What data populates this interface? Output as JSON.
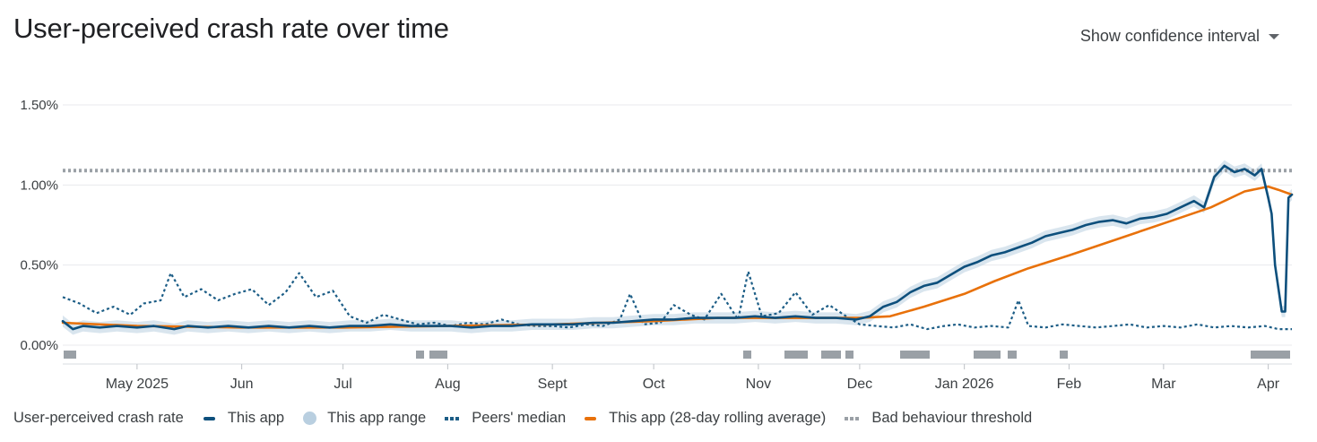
{
  "header": {
    "title": "User-perceived crash rate over time",
    "ci_toggle_label": "Show confidence interval",
    "ci_toggle_icon": "caret-down-icon"
  },
  "legend": {
    "metric_label": "User-perceived crash rate",
    "items": [
      {
        "label": "This app",
        "color": "#174ea6",
        "style": "line"
      },
      {
        "label": "This app range",
        "color": "#b9cfe0",
        "style": "dot"
      },
      {
        "label": "Peers' median",
        "color": "#1c5d86",
        "style": "dotted"
      },
      {
        "label": "This app (28-day rolling average)",
        "color": "#e8710a",
        "style": "line"
      },
      {
        "label": "Bad behaviour threshold",
        "color": "#9aa0a6",
        "style": "dotted"
      }
    ]
  },
  "chart_data": {
    "type": "line",
    "title": "User-perceived crash rate over time",
    "x_range": [
      "2025-04-09",
      "2026-04-08"
    ],
    "ylim": [
      0,
      1.5
    ],
    "y_unit": "%",
    "yticks": [
      {
        "value": 0,
        "label": "0.00%"
      },
      {
        "value": 0.5,
        "label": "0.50%"
      },
      {
        "value": 1.0,
        "label": "1.00%"
      },
      {
        "value": 1.5,
        "label": "1.50%"
      }
    ],
    "xticks": [
      {
        "date": "2025-05-01",
        "label": "May 2025"
      },
      {
        "date": "2025-06-01",
        "label": "Jun"
      },
      {
        "date": "2025-07-01",
        "label": "Jul"
      },
      {
        "date": "2025-08-01",
        "label": "Aug"
      },
      {
        "date": "2025-09-01",
        "label": "Sept"
      },
      {
        "date": "2025-10-01",
        "label": "Oct"
      },
      {
        "date": "2025-11-01",
        "label": "Nov"
      },
      {
        "date": "2025-12-01",
        "label": "Dec"
      },
      {
        "date": "2026-01-01",
        "label": "Jan 2026"
      },
      {
        "date": "2026-02-01",
        "label": "Feb"
      },
      {
        "date": "2026-03-01",
        "label": "Mar"
      },
      {
        "date": "2026-04-01",
        "label": "Apr"
      }
    ],
    "grid": true,
    "legend_position": "bottom",
    "threshold": {
      "name": "Bad behaviour threshold",
      "value": 1.09
    },
    "series": [
      {
        "name": "This app",
        "color": "#0d4f7c",
        "points": [
          [
            "2025-04-09",
            0.15
          ],
          [
            "2025-04-12",
            0.1
          ],
          [
            "2025-04-15",
            0.12
          ],
          [
            "2025-04-20",
            0.11
          ],
          [
            "2025-04-25",
            0.12
          ],
          [
            "2025-05-01",
            0.11
          ],
          [
            "2025-05-06",
            0.12
          ],
          [
            "2025-05-12",
            0.1
          ],
          [
            "2025-05-16",
            0.12
          ],
          [
            "2025-05-22",
            0.11
          ],
          [
            "2025-05-28",
            0.12
          ],
          [
            "2025-06-03",
            0.11
          ],
          [
            "2025-06-09",
            0.12
          ],
          [
            "2025-06-15",
            0.11
          ],
          [
            "2025-06-21",
            0.12
          ],
          [
            "2025-06-27",
            0.11
          ],
          [
            "2025-07-03",
            0.12
          ],
          [
            "2025-07-09",
            0.12
          ],
          [
            "2025-07-15",
            0.13
          ],
          [
            "2025-07-21",
            0.12
          ],
          [
            "2025-07-27",
            0.12
          ],
          [
            "2025-08-02",
            0.12
          ],
          [
            "2025-08-08",
            0.11
          ],
          [
            "2025-08-14",
            0.12
          ],
          [
            "2025-08-20",
            0.12
          ],
          [
            "2025-08-26",
            0.13
          ],
          [
            "2025-09-01",
            0.13
          ],
          [
            "2025-09-07",
            0.13
          ],
          [
            "2025-09-13",
            0.14
          ],
          [
            "2025-09-19",
            0.14
          ],
          [
            "2025-09-25",
            0.15
          ],
          [
            "2025-10-01",
            0.16
          ],
          [
            "2025-10-07",
            0.16
          ],
          [
            "2025-10-13",
            0.17
          ],
          [
            "2025-10-19",
            0.17
          ],
          [
            "2025-10-25",
            0.17
          ],
          [
            "2025-10-31",
            0.18
          ],
          [
            "2025-11-06",
            0.17
          ],
          [
            "2025-11-12",
            0.18
          ],
          [
            "2025-11-18",
            0.17
          ],
          [
            "2025-11-24",
            0.17
          ],
          [
            "2025-11-30",
            0.16
          ],
          [
            "2025-12-04",
            0.18
          ],
          [
            "2025-12-08",
            0.24
          ],
          [
            "2025-12-12",
            0.27
          ],
          [
            "2025-12-16",
            0.33
          ],
          [
            "2025-12-20",
            0.37
          ],
          [
            "2025-12-24",
            0.39
          ],
          [
            "2025-12-28",
            0.44
          ],
          [
            "2026-01-01",
            0.49
          ],
          [
            "2026-01-05",
            0.52
          ],
          [
            "2026-01-09",
            0.56
          ],
          [
            "2026-01-13",
            0.58
          ],
          [
            "2026-01-17",
            0.61
          ],
          [
            "2026-01-21",
            0.64
          ],
          [
            "2026-01-25",
            0.68
          ],
          [
            "2026-01-29",
            0.7
          ],
          [
            "2026-02-02",
            0.72
          ],
          [
            "2026-02-06",
            0.75
          ],
          [
            "2026-02-10",
            0.77
          ],
          [
            "2026-02-14",
            0.78
          ],
          [
            "2026-02-18",
            0.76
          ],
          [
            "2026-02-22",
            0.79
          ],
          [
            "2026-02-26",
            0.8
          ],
          [
            "2026-03-02",
            0.82
          ],
          [
            "2026-03-06",
            0.86
          ],
          [
            "2026-03-10",
            0.9
          ],
          [
            "2026-03-13",
            0.86
          ],
          [
            "2026-03-16",
            1.05
          ],
          [
            "2026-03-19",
            1.12
          ],
          [
            "2026-03-22",
            1.08
          ],
          [
            "2026-03-25",
            1.1
          ],
          [
            "2026-03-28",
            1.06
          ],
          [
            "2026-03-30",
            1.1
          ],
          [
            "2026-04-01",
            0.92
          ],
          [
            "2026-04-02",
            0.82
          ],
          [
            "2026-04-03",
            0.5
          ],
          [
            "2026-04-05",
            0.21
          ],
          [
            "2026-04-06",
            0.21
          ],
          [
            "2026-04-07",
            0.92
          ],
          [
            "2026-04-08",
            0.94
          ]
        ]
      },
      {
        "name": "Peers' median",
        "color": "#1c5d86",
        "points": [
          [
            "2025-04-09",
            0.3
          ],
          [
            "2025-04-14",
            0.26
          ],
          [
            "2025-04-19",
            0.2
          ],
          [
            "2025-04-24",
            0.24
          ],
          [
            "2025-04-29",
            0.19
          ],
          [
            "2025-05-03",
            0.26
          ],
          [
            "2025-05-08",
            0.28
          ],
          [
            "2025-05-11",
            0.45
          ],
          [
            "2025-05-15",
            0.3
          ],
          [
            "2025-05-20",
            0.35
          ],
          [
            "2025-05-25",
            0.28
          ],
          [
            "2025-05-30",
            0.32
          ],
          [
            "2025-06-04",
            0.35
          ],
          [
            "2025-06-09",
            0.25
          ],
          [
            "2025-06-14",
            0.33
          ],
          [
            "2025-06-18",
            0.45
          ],
          [
            "2025-06-23",
            0.3
          ],
          [
            "2025-06-28",
            0.34
          ],
          [
            "2025-07-03",
            0.18
          ],
          [
            "2025-07-08",
            0.14
          ],
          [
            "2025-07-13",
            0.19
          ],
          [
            "2025-07-18",
            0.16
          ],
          [
            "2025-07-23",
            0.13
          ],
          [
            "2025-07-28",
            0.14
          ],
          [
            "2025-08-02",
            0.12
          ],
          [
            "2025-08-07",
            0.14
          ],
          [
            "2025-08-12",
            0.13
          ],
          [
            "2025-08-17",
            0.16
          ],
          [
            "2025-08-22",
            0.13
          ],
          [
            "2025-08-27",
            0.12
          ],
          [
            "2025-09-01",
            0.12
          ],
          [
            "2025-09-06",
            0.11
          ],
          [
            "2025-09-11",
            0.13
          ],
          [
            "2025-09-16",
            0.12
          ],
          [
            "2025-09-21",
            0.16
          ],
          [
            "2025-09-24",
            0.32
          ],
          [
            "2025-09-28",
            0.13
          ],
          [
            "2025-10-03",
            0.14
          ],
          [
            "2025-10-07",
            0.25
          ],
          [
            "2025-10-12",
            0.19
          ],
          [
            "2025-10-16",
            0.16
          ],
          [
            "2025-10-21",
            0.32
          ],
          [
            "2025-10-26",
            0.16
          ],
          [
            "2025-10-29",
            0.46
          ],
          [
            "2025-11-02",
            0.18
          ],
          [
            "2025-11-07",
            0.2
          ],
          [
            "2025-11-12",
            0.33
          ],
          [
            "2025-11-17",
            0.19
          ],
          [
            "2025-11-22",
            0.25
          ],
          [
            "2025-11-27",
            0.18
          ],
          [
            "2025-12-01",
            0.13
          ],
          [
            "2025-12-06",
            0.12
          ],
          [
            "2025-12-11",
            0.11
          ],
          [
            "2025-12-16",
            0.13
          ],
          [
            "2025-12-21",
            0.1
          ],
          [
            "2025-12-26",
            0.12
          ],
          [
            "2025-12-30",
            0.13
          ],
          [
            "2026-01-04",
            0.11
          ],
          [
            "2026-01-09",
            0.12
          ],
          [
            "2026-01-14",
            0.11
          ],
          [
            "2026-01-17",
            0.28
          ],
          [
            "2026-01-20",
            0.12
          ],
          [
            "2026-01-25",
            0.11
          ],
          [
            "2026-01-30",
            0.13
          ],
          [
            "2026-02-04",
            0.12
          ],
          [
            "2026-02-09",
            0.11
          ],
          [
            "2026-02-14",
            0.12
          ],
          [
            "2026-02-19",
            0.13
          ],
          [
            "2026-02-24",
            0.11
          ],
          [
            "2026-03-01",
            0.12
          ],
          [
            "2026-03-06",
            0.11
          ],
          [
            "2026-03-11",
            0.13
          ],
          [
            "2026-03-16",
            0.11
          ],
          [
            "2026-03-21",
            0.12
          ],
          [
            "2026-03-26",
            0.11
          ],
          [
            "2026-03-31",
            0.12
          ],
          [
            "2026-04-04",
            0.1
          ],
          [
            "2026-04-08",
            0.1
          ]
        ]
      },
      {
        "name": "This app (28-day rolling average)",
        "color": "#e8710a",
        "points": [
          [
            "2025-04-09",
            0.14
          ],
          [
            "2025-05-01",
            0.12
          ],
          [
            "2025-06-01",
            0.11
          ],
          [
            "2025-07-01",
            0.11
          ],
          [
            "2025-08-01",
            0.12
          ],
          [
            "2025-09-01",
            0.13
          ],
          [
            "2025-10-01",
            0.15
          ],
          [
            "2025-10-20",
            0.17
          ],
          [
            "2025-11-10",
            0.17
          ],
          [
            "2025-12-01",
            0.17
          ],
          [
            "2025-12-10",
            0.18
          ],
          [
            "2025-12-20",
            0.24
          ],
          [
            "2026-01-01",
            0.32
          ],
          [
            "2026-01-10",
            0.4
          ],
          [
            "2026-01-20",
            0.48
          ],
          [
            "2026-02-01",
            0.56
          ],
          [
            "2026-02-15",
            0.66
          ],
          [
            "2026-03-01",
            0.76
          ],
          [
            "2026-03-15",
            0.86
          ],
          [
            "2026-03-25",
            0.96
          ],
          [
            "2026-04-01",
            0.99
          ],
          [
            "2026-04-04",
            0.97
          ],
          [
            "2026-04-08",
            0.94
          ]
        ]
      }
    ],
    "range_band": {
      "name": "This app range",
      "color": "#b9cfe0",
      "half_width": 0.035
    }
  }
}
